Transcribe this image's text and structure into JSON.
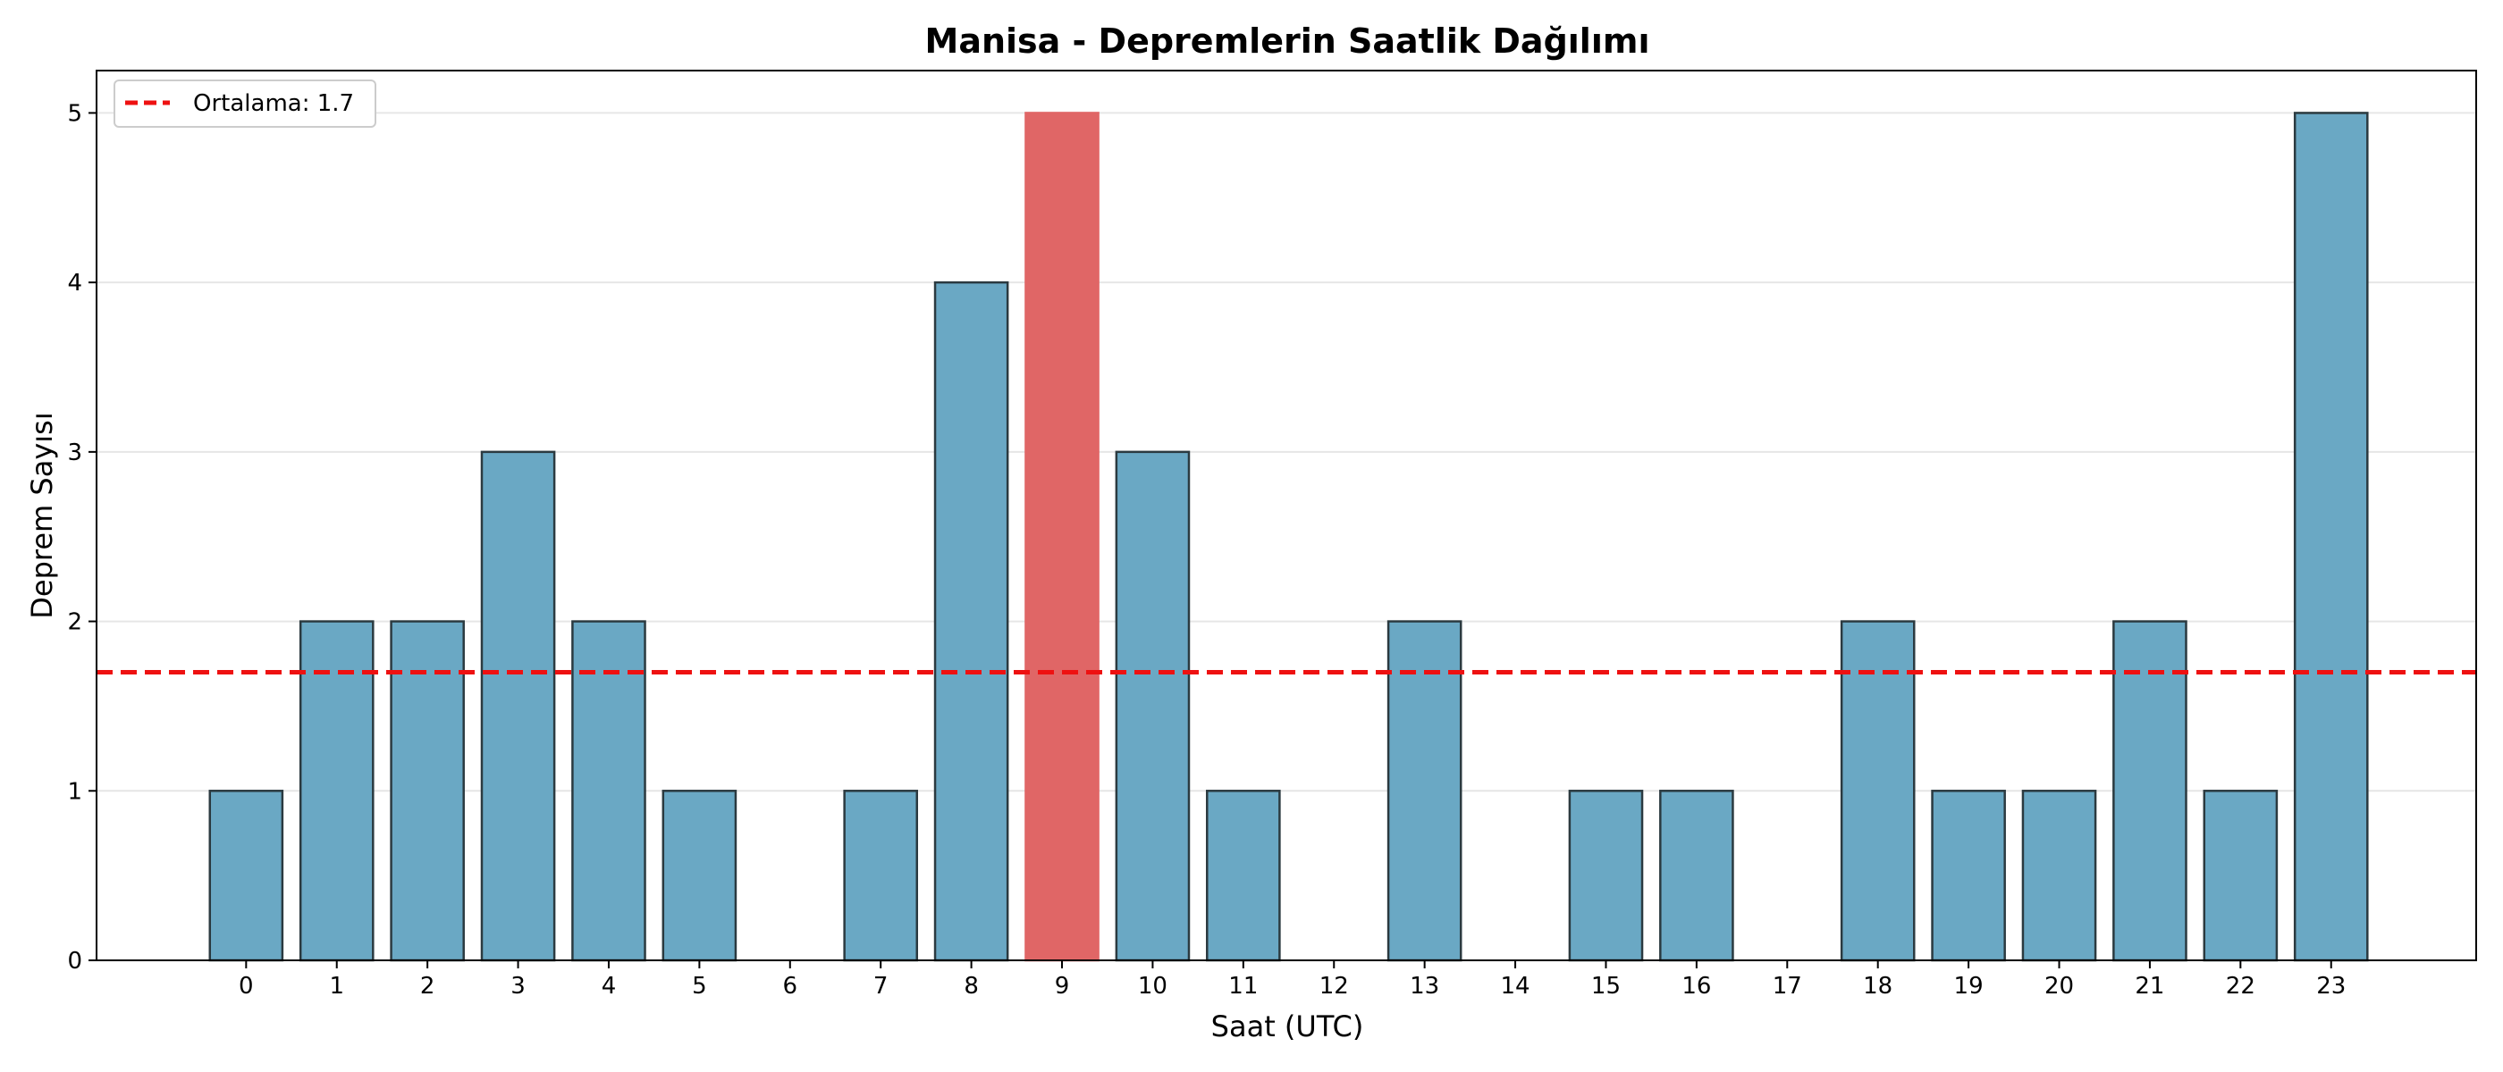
{
  "chart_data": {
    "type": "bar",
    "title": "Manisa - Depremlerin Saatlik Dağılımı",
    "xlabel": "Saat (UTC)",
    "ylabel": "Deprem Sayısı",
    "categories": [
      "0",
      "1",
      "2",
      "3",
      "4",
      "5",
      "6",
      "7",
      "8",
      "9",
      "10",
      "11",
      "12",
      "13",
      "14",
      "15",
      "16",
      "17",
      "18",
      "19",
      "20",
      "21",
      "22",
      "23"
    ],
    "values": [
      1,
      2,
      2,
      3,
      2,
      1,
      0,
      1,
      4,
      5,
      3,
      1,
      0,
      2,
      0,
      1,
      1,
      0,
      2,
      1,
      1,
      2,
      1,
      5
    ],
    "ylim": [
      0,
      5.25
    ],
    "yticks": [
      0,
      1,
      2,
      3,
      4,
      5
    ],
    "xlim": [
      -1.65,
      24.6
    ],
    "grid": "y",
    "highlight_index": 9,
    "mean_line": {
      "value": 1.7,
      "label": "Ortalama: 1.7"
    },
    "legend": {
      "placement": "top-left"
    },
    "colors": {
      "bar": "#6aa8c4",
      "highlight": "#e06666",
      "bar_edge": "#2b3a40",
      "mean_line": "#ee1111",
      "grid": "#e6e6e6"
    }
  }
}
